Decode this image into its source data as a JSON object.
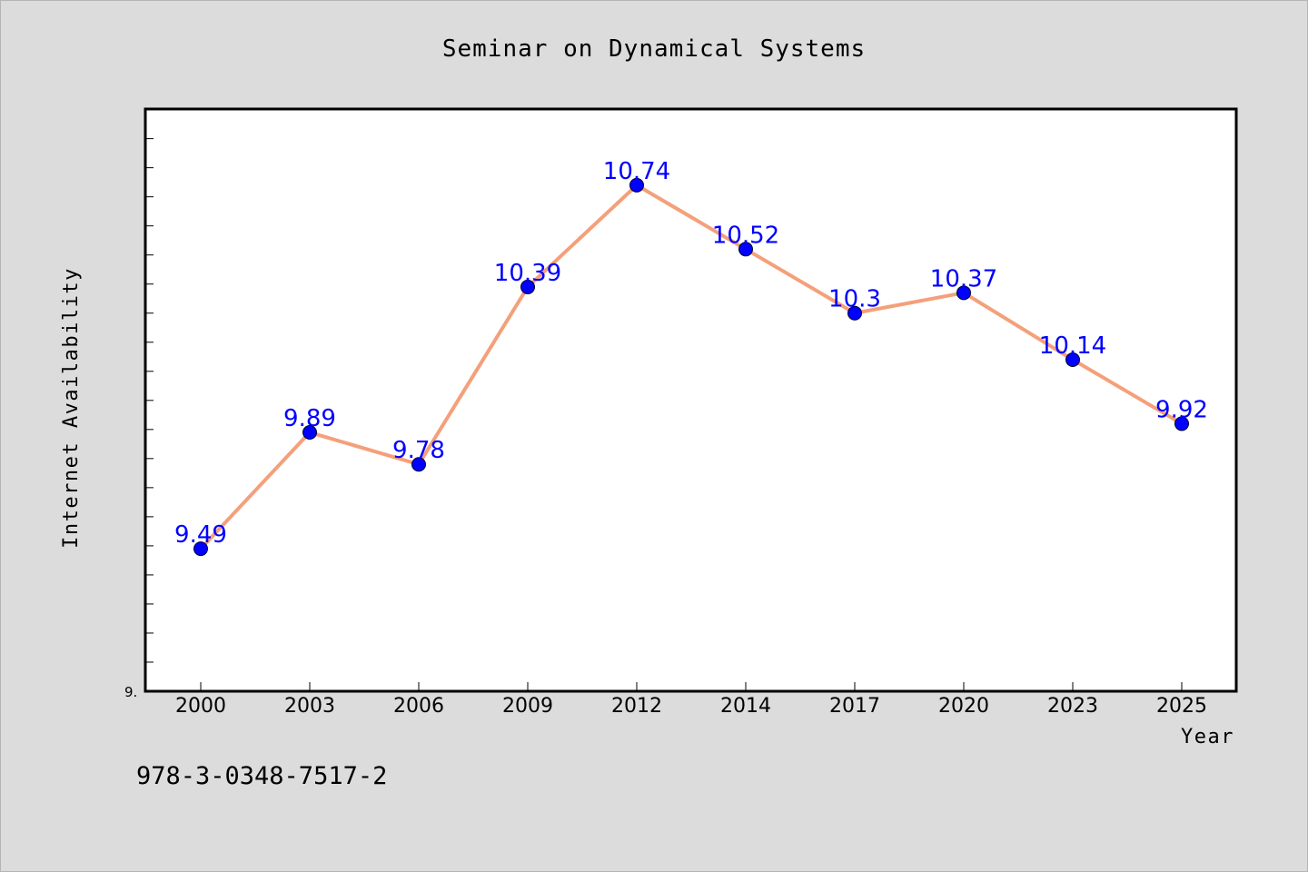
{
  "chart_data": {
    "type": "line",
    "title": "Seminar on Dynamical Systems",
    "xlabel": "Year",
    "ylabel": "Internet Availability",
    "categories": [
      "2000",
      "2003",
      "2006",
      "2009",
      "2012",
      "2014",
      "2017",
      "2020",
      "2023",
      "2025"
    ],
    "series": [
      {
        "values": [
          9.49,
          9.89,
          9.78,
          10.39,
          10.74,
          10.52,
          10.3,
          10.37,
          10.14,
          9.92
        ],
        "labels": [
          "9.49",
          "9.89",
          "9.78",
          "10.39",
          "10.74",
          "10.52",
          "10.3",
          "10.37",
          "10.14",
          "9.92"
        ],
        "line_color": "#f4a07a",
        "marker_color": "#0000ff"
      }
    ],
    "ytick_labels": [
      "9."
    ],
    "ylim": [
      9.0,
      11.0
    ],
    "grid": false,
    "legend": "none"
  },
  "footer": {
    "isbn": "978-3-0348-7517-2"
  },
  "colors": {
    "background": "#dcdcdc",
    "plot_background": "#ffffff",
    "line": "#f4a07a",
    "marker": "#0000ff",
    "data_label": "#0000ff"
  }
}
